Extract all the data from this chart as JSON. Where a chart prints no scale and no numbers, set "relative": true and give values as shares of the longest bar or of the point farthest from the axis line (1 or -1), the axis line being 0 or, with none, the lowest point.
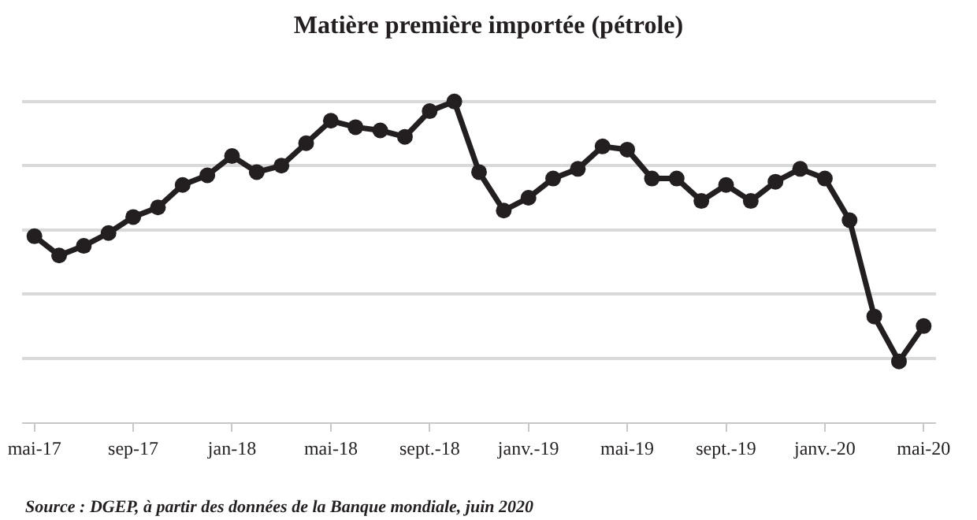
{
  "chart_data": {
    "type": "line",
    "title": "Matière première importée (pétrole)",
    "relative": true,
    "grid": "y",
    "marker": "circle",
    "line_style": "solid",
    "categories": [
      "mai-17",
      null,
      null,
      null,
      "sep-17",
      null,
      null,
      null,
      "jan-18",
      null,
      null,
      null,
      "mai-18",
      null,
      null,
      null,
      "sept.-18",
      null,
      null,
      null,
      "janv.-19",
      null,
      null,
      null,
      "mai-19",
      null,
      null,
      null,
      "sept.-19",
      null,
      null,
      null,
      "janv.-20",
      null,
      null,
      null,
      "mai-20"
    ],
    "series": [
      {
        "color": "#231f20",
        "values": [
          0.58,
          0.52,
          0.55,
          0.59,
          0.64,
          0.67,
          0.74,
          0.77,
          0.83,
          0.78,
          0.8,
          0.87,
          0.94,
          0.92,
          0.91,
          0.89,
          0.97,
          1,
          0.78,
          0.66,
          0.7,
          0.76,
          0.79,
          0.86,
          0.85,
          0.76,
          0.76,
          0.69,
          0.74,
          0.69,
          0.75,
          0.79,
          0.76,
          0.63,
          0.33,
          0.19,
          0.3
        ]
      }
    ],
    "annotations": [
      "Source : DGEP, à partir des données de la Banque mondiale, juin 2020"
    ]
  }
}
